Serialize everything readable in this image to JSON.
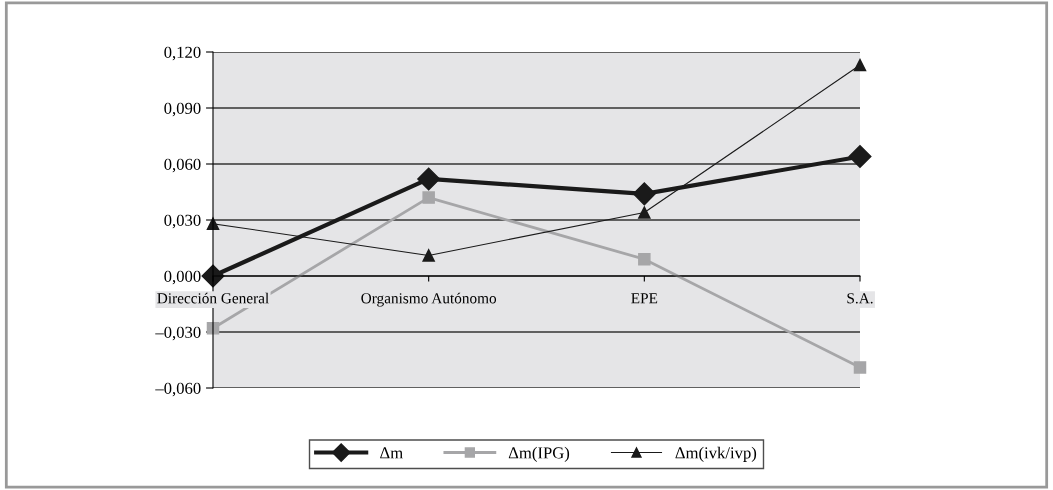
{
  "chart_data": {
    "type": "line",
    "categories": [
      "Dirección General",
      "Organismo Autónomo",
      "EPE",
      "S.A."
    ],
    "series": [
      {
        "name": "Δm",
        "color": "#1a1a1a",
        "values": [
          0.0,
          0.052,
          0.044,
          0.064
        ],
        "marker": "diamond"
      },
      {
        "name": "Δm(IPG)",
        "color": "#a6a6a8",
        "values": [
          -0.028,
          0.042,
          0.009,
          -0.049
        ],
        "marker": "square"
      },
      {
        "name": "Δm(ivk/ivp)",
        "color": "#1a1a1a",
        "values": [
          0.028,
          0.011,
          0.034,
          0.113
        ],
        "marker": "triangle"
      }
    ],
    "ylim": [
      -0.06,
      0.12
    ],
    "yticks": [
      {
        "value": -0.06,
        "label": "–0,060"
      },
      {
        "value": -0.03,
        "label": "–0,030"
      },
      {
        "value": 0,
        "label": "0,000"
      },
      {
        "value": 0.03,
        "label": "0,030"
      },
      {
        "value": 0.06,
        "label": "0,060"
      },
      {
        "value": 0.09,
        "label": "0,090"
      },
      {
        "value": 0.12,
        "label": "0,120"
      }
    ],
    "grid": "y",
    "legend": "bottom",
    "line_style": "solid"
  }
}
